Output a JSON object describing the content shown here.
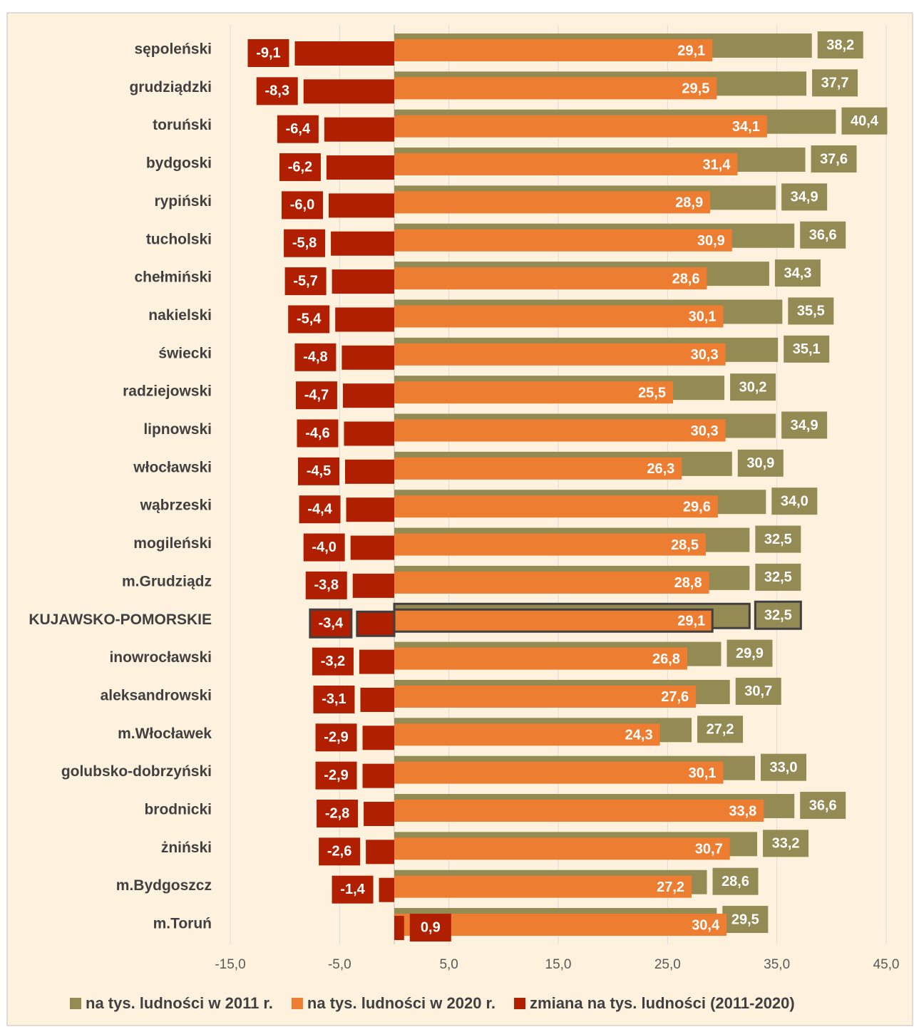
{
  "chart_data": {
    "type": "bar",
    "orientation": "horizontal",
    "categories": [
      "sępoleński",
      "grudziądzki",
      "toruński",
      "bydgoski",
      "rypiński",
      "tucholski",
      "chełmiński",
      "nakielski",
      "świecki",
      "radziejowski",
      "lipnowski",
      "włocławski",
      "wąbrzeski",
      "mogileński",
      "m.Grudziądz",
      "KUJAWSKO-POMORSKIE",
      "inowrocławski",
      "aleksandrowski",
      "m.Włocławek",
      "golubsko-dobrzyński",
      "brodnicki",
      "żniński",
      "m.Bydgoszcz",
      "m.Toruń"
    ],
    "series": [
      {
        "name": "na tys. ludności w 2011 r.",
        "color": "#948a54",
        "values": [
          38.2,
          37.7,
          40.4,
          37.6,
          34.9,
          36.6,
          34.3,
          35.5,
          35.1,
          30.2,
          34.9,
          30.9,
          34.0,
          32.5,
          32.5,
          32.5,
          29.9,
          30.7,
          27.2,
          33.0,
          36.6,
          33.2,
          28.6,
          29.5
        ],
        "value_labels": [
          "38,2",
          "37,7",
          "40,4",
          "37,6",
          "34,9",
          "36,6",
          "34,3",
          "35,5",
          "35,1",
          "30,2",
          "34,9",
          "30,9",
          "34,0",
          "32,5",
          "32,5",
          "32,5",
          "29,9",
          "30,7",
          "27,2",
          "33,0",
          "36,6",
          "33,2",
          "28,6",
          "29,5"
        ]
      },
      {
        "name": "na tys. ludności w 2020 r.",
        "color": "#ed7d31",
        "values": [
          29.1,
          29.5,
          34.1,
          31.4,
          28.9,
          30.9,
          28.6,
          30.1,
          30.3,
          25.5,
          30.3,
          26.3,
          29.6,
          28.5,
          28.8,
          29.1,
          26.8,
          27.6,
          24.3,
          30.1,
          33.8,
          30.7,
          27.2,
          30.4
        ],
        "value_labels": [
          "29,1",
          "29,5",
          "34,1",
          "31,4",
          "28,9",
          "30,9",
          "28,6",
          "30,1",
          "30,3",
          "25,5",
          "30,3",
          "26,3",
          "29,6",
          "28,5",
          "28,8",
          "29,1",
          "26,8",
          "27,6",
          "24,3",
          "30,1",
          "33,8",
          "30,7",
          "27,2",
          "30,4"
        ]
      },
      {
        "name": "zmiana na tys. ludności (2011-2020)",
        "color": "#b02000",
        "values": [
          -9.1,
          -8.3,
          -6.4,
          -6.2,
          -6.0,
          -5.8,
          -5.7,
          -5.4,
          -4.8,
          -4.7,
          -4.6,
          -4.5,
          -4.4,
          -4.0,
          -3.8,
          -3.4,
          -3.2,
          -3.1,
          -2.9,
          -2.9,
          -2.8,
          -2.6,
          -1.4,
          0.9
        ],
        "value_labels": [
          "-9,1",
          "-8,3",
          "-6,4",
          "-6,2",
          "-6,0",
          "-5,8",
          "-5,7",
          "-5,4",
          "-4,8",
          "-4,7",
          "-4,6",
          "-4,5",
          "-4,4",
          "-4,0",
          "-3,8",
          "-3,4",
          "-3,2",
          "-3,1",
          "-2,9",
          "-2,9",
          "-2,8",
          "-2,6",
          "-1,4",
          "0,9"
        ]
      }
    ],
    "xlim": [
      -15,
      45
    ],
    "xticks": [
      {
        "value": -15,
        "label": "-15,0"
      },
      {
        "value": -5,
        "label": "-5,0"
      },
      {
        "value": 5,
        "label": "5,0"
      },
      {
        "value": 15,
        "label": "15,0"
      },
      {
        "value": 25,
        "label": "25,0"
      },
      {
        "value": 35,
        "label": "35,0"
      },
      {
        "value": 45,
        "label": "45,0"
      }
    ],
    "grid": true,
    "highlight_index": 15,
    "legend": "bottom"
  }
}
